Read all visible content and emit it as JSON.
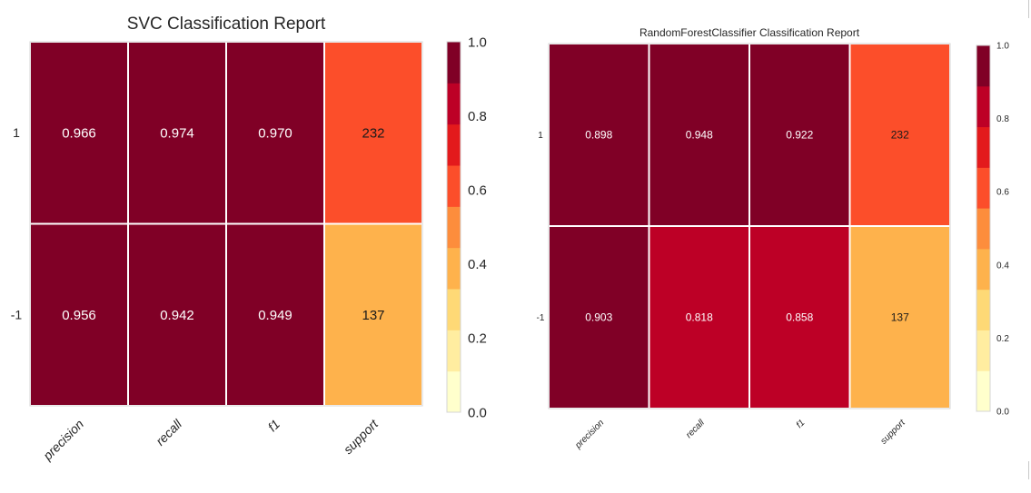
{
  "chart_data": [
    {
      "type": "heatmap",
      "title": "SVC Classification Report",
      "rows": [
        "1",
        "-1"
      ],
      "columns": [
        "precision",
        "recall",
        "f1",
        "support"
      ],
      "values": [
        [
          0.966,
          0.974,
          0.97,
          232
        ],
        [
          0.956,
          0.942,
          0.949,
          137
        ]
      ],
      "cell_labels": [
        [
          "0.966",
          "0.974",
          "0.970",
          "232"
        ],
        [
          "0.956",
          "0.942",
          "0.949",
          "137"
        ]
      ],
      "colorbar": {
        "range": [
          0.0,
          1.0
        ],
        "ticks": [
          "0.0",
          "0.2",
          "0.4",
          "0.6",
          "0.8",
          "1.0"
        ]
      },
      "support_max_for_color": 369,
      "grid": false
    },
    {
      "type": "heatmap",
      "title": "RandomForestClassifier Classification Report",
      "rows": [
        "1",
        "-1"
      ],
      "columns": [
        "precision",
        "recall",
        "f1",
        "support"
      ],
      "values": [
        [
          0.898,
          0.948,
          0.922,
          232
        ],
        [
          0.903,
          0.818,
          0.858,
          137
        ]
      ],
      "cell_labels": [
        [
          "0.898",
          "0.948",
          "0.922",
          "232"
        ],
        [
          "0.903",
          "0.818",
          "0.858",
          "137"
        ]
      ],
      "colorbar": {
        "range": [
          0.0,
          1.0
        ],
        "ticks": [
          "0.0",
          "0.2",
          "0.4",
          "0.6",
          "0.8",
          "1.0"
        ]
      },
      "support_max_for_color": 369,
      "grid": false
    }
  ],
  "palette": [
    "#ffffcc",
    "#ffeda0",
    "#fed976",
    "#feb24c",
    "#fd8d3c",
    "#fc4e2a",
    "#e31a1c",
    "#bd0026",
    "#800026"
  ]
}
